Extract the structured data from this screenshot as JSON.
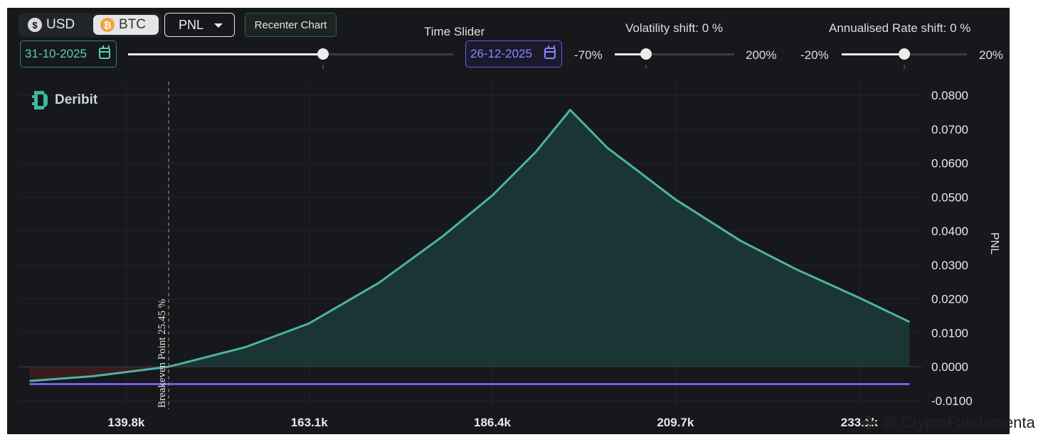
{
  "toolbar": {
    "usd_label": "USD",
    "usd_icon": "dollar-coin-icon",
    "btc_label": "BTC",
    "btc_icon": "bitcoin-icon",
    "active_currency": "BTC",
    "metric_select": "PNL",
    "recenter_label": "Recenter Chart"
  },
  "time_slider": {
    "label": "Time Slider",
    "start_date": "31-10-2025",
    "end_date": "26-12-2025",
    "position": 0.6
  },
  "volatility": {
    "label": "Volatility shift: 0 %",
    "min_label": "-70%",
    "max_label": "200%",
    "min": -70,
    "max": 200,
    "value": 0
  },
  "rate": {
    "label": "Annualised Rate shift: 0 %",
    "min_label": "-20%",
    "max_label": "20%",
    "min": -20,
    "max": 20,
    "value": 0
  },
  "brand": {
    "name": "Deribit",
    "icon": "deribit-logo-icon"
  },
  "watermark": {
    "text": "@ CryptoFundamenta",
    "icon": "binance-diamond-icon"
  },
  "colors": {
    "background": "#16181b",
    "profit_line": "#4db3a5",
    "profit_fill": "#1b3534",
    "loss_fill": "#3a1b1d",
    "flat_line": "#7360e8",
    "breakeven_line": "#8a8a6a",
    "usd_accent": "#2f8a7a",
    "end_date_accent": "#6a58e8"
  },
  "chart_data": {
    "type": "area",
    "ylabel": "PNL",
    "xlabel": "",
    "x_tick_labels": [
      "139.8k",
      "163.1k",
      "186.4k",
      "209.7k",
      "233.1k"
    ],
    "x_ticks": [
      139800,
      163100,
      186400,
      209700,
      233100
    ],
    "xlim": [
      126000,
      241000
    ],
    "y_tick_labels": [
      "0.0800",
      "0.0700",
      "0.0600",
      "0.0500",
      "0.0400",
      "0.0300",
      "0.0200",
      "0.0100",
      "0.0000",
      "-0.0100"
    ],
    "y_ticks": [
      0.08,
      0.07,
      0.06,
      0.05,
      0.04,
      0.03,
      0.02,
      0.01,
      0,
      -0.01
    ],
    "ylim": [
      -0.0115,
      0.084
    ],
    "grid": true,
    "breakeven": {
      "x": 145200,
      "label": "Breakeven Point 25.45 %"
    },
    "series": [
      {
        "values_x": [
          127500,
          135500,
          145200,
          155000,
          163100,
          172000,
          180000,
          186400,
          192000,
          196300,
          201000,
          209700,
          218000,
          225000,
          233100,
          239500
        ],
        "values_y": [
          -0.0042,
          -0.0028,
          0.0,
          0.0058,
          0.0128,
          0.0248,
          0.0383,
          0.0505,
          0.0635,
          0.0757,
          0.0646,
          0.0493,
          0.0371,
          0.0288,
          0.0203,
          0.0132
        ]
      },
      {
        "values_x": [
          127500,
          239500
        ],
        "values_y": [
          -0.0051,
          -0.0051
        ]
      }
    ]
  }
}
